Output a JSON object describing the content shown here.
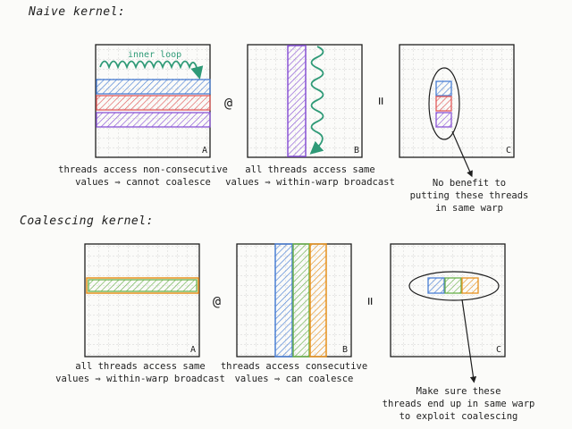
{
  "sections": [
    {
      "title": "Naive kernel:",
      "operators": {
        "matmul": "@",
        "equals": "="
      },
      "matrices": [
        {
          "label": "A",
          "caption_line1": "threads access non-consecutive",
          "caption_line2": "values ⇒ cannot coalesce",
          "annotation": "inner loop"
        },
        {
          "label": "B",
          "caption_line1": "all threads access same",
          "caption_line2": "values ⇒ within-warp broadcast"
        },
        {
          "label": "C",
          "note_line1": "No benefit to",
          "note_line2": "putting these threads",
          "note_line3": "in same warp"
        }
      ]
    },
    {
      "title": "Coalescing kernel:",
      "operators": {
        "matmul": "@",
        "equals": "="
      },
      "matrices": [
        {
          "label": "A",
          "caption_line1": "all threads access same",
          "caption_line2": "values ⇒ within-warp broadcast"
        },
        {
          "label": "B",
          "caption_line1": "threads access consecutive",
          "caption_line2": "values ⇒ can coalesce"
        },
        {
          "label": "C",
          "note_line1": "Make sure these",
          "note_line2": "threads end up in same warp",
          "note_line3": "to exploit coalescing"
        }
      ]
    }
  ],
  "colors": {
    "blue": "#4a7fd4",
    "red": "#e05a5a",
    "purple": "#8a55d6",
    "green": "#69b14b",
    "orange": "#e7921e",
    "arrow": "#2f9a77",
    "grid": "#bdbdbd",
    "ink": "#1e1e1e"
  }
}
